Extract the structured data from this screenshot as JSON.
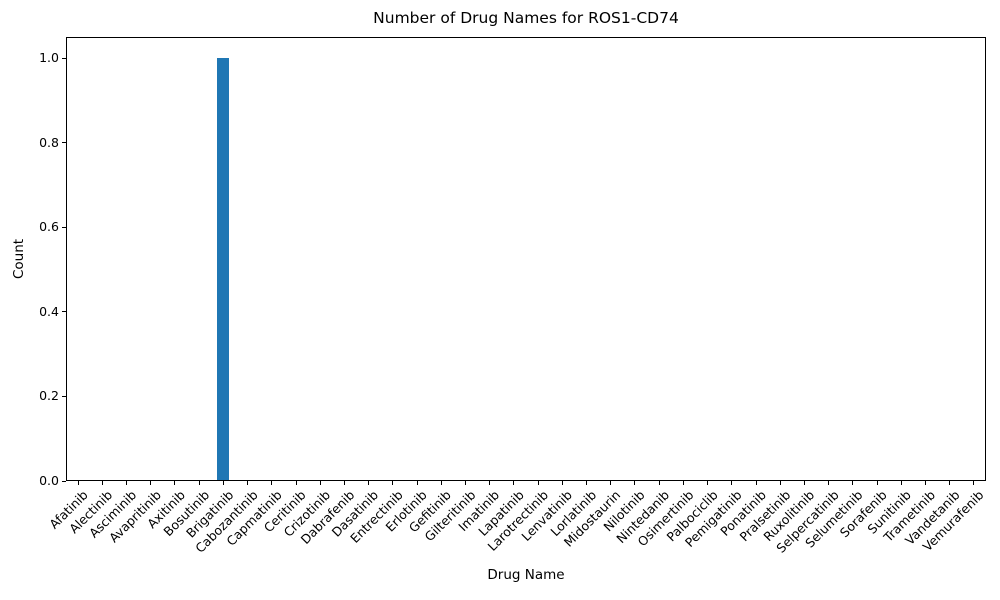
{
  "chart_data": {
    "type": "bar",
    "title": "Number of Drug Names for ROS1-CD74",
    "xlabel": "Drug Name",
    "ylabel": "Count",
    "categories": [
      "Afatinib",
      "Alectinib",
      "Asciminib",
      "Avapritinib",
      "Axitinib",
      "Bosutinib",
      "Brigatinib",
      "Cabozantinib",
      "Capmatinib",
      "Ceritinib",
      "Crizotinib",
      "Dabrafenib",
      "Dasatinib",
      "Entrectinib",
      "Erlotinib",
      "Gefitinib",
      "Gilteritinib",
      "Imatinib",
      "Lapatinib",
      "Larotrectinib",
      "Lenvatinib",
      "Lorlatinib",
      "Midostaurin",
      "Nilotinib",
      "Nintedanib",
      "Osimertinib",
      "Palbociclib",
      "Pemigatinib",
      "Ponatinib",
      "Pralsetinib",
      "Ruxolitinib",
      "Selpercatinib",
      "Selumetinib",
      "Sorafenib",
      "Sunitinib",
      "Trametinib",
      "Vandetanib",
      "Vemurafenib"
    ],
    "values": [
      0,
      0,
      0,
      0,
      0,
      0,
      1,
      0,
      0,
      0,
      0,
      0,
      0,
      0,
      0,
      0,
      0,
      0,
      0,
      0,
      0,
      0,
      0,
      0,
      0,
      0,
      0,
      0,
      0,
      0,
      0,
      0,
      0,
      0,
      0,
      0,
      0,
      0
    ],
    "ytick_labels": [
      "0.0",
      "0.2",
      "0.4",
      "0.6",
      "0.8",
      "1.0"
    ],
    "ylim": [
      0,
      1.05
    ],
    "xtick_rotation": 45,
    "bar_width_fraction": 0.5,
    "bar_color": "#1f77b4",
    "text_color": "#000000",
    "background_color": "#ffffff",
    "grid": false,
    "legend": false
  }
}
